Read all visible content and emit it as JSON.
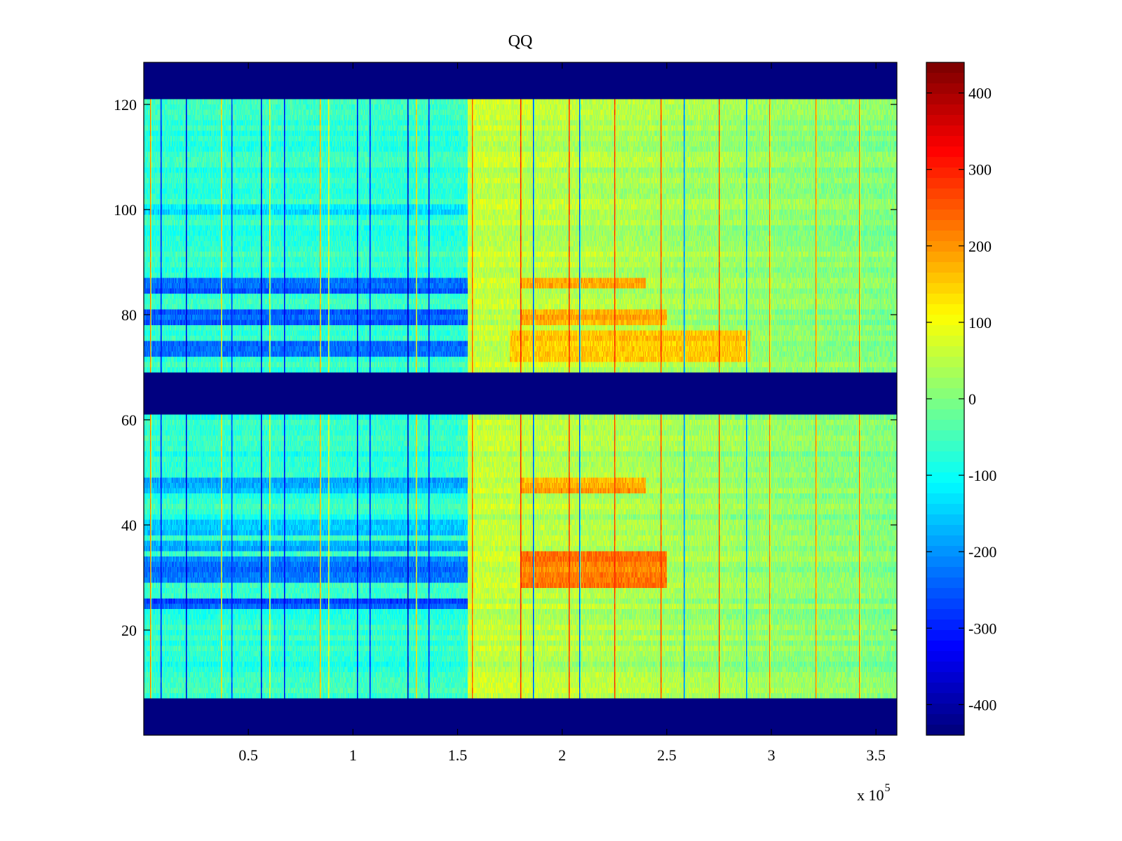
{
  "chart_data": {
    "type": "heatmap",
    "title": "QQ",
    "xlabel": "",
    "ylabel": "",
    "x_exponent_label": "x 10",
    "x_exponent_power": "5",
    "xlim": [
      0,
      3.6
    ],
    "ylim": [
      0,
      128
    ],
    "x_ticks": [
      {
        "value": 0.5,
        "label": "0.5"
      },
      {
        "value": 1,
        "label": "1"
      },
      {
        "value": 1.5,
        "label": "1.5"
      },
      {
        "value": 2,
        "label": "2"
      },
      {
        "value": 2.5,
        "label": "2.5"
      },
      {
        "value": 3,
        "label": "3"
      },
      {
        "value": 3.5,
        "label": "3.5"
      }
    ],
    "y_ticks": [
      {
        "value": 20,
        "label": "20"
      },
      {
        "value": 40,
        "label": "40"
      },
      {
        "value": 60,
        "label": "60"
      },
      {
        "value": 80,
        "label": "80"
      },
      {
        "value": 100,
        "label": "100"
      },
      {
        "value": 120,
        "label": "120"
      }
    ],
    "colorbar": {
      "colormap": "jet",
      "clim": [
        -440,
        440
      ],
      "ticks": [
        {
          "value": 400,
          "label": "400"
        },
        {
          "value": 300,
          "label": "300"
        },
        {
          "value": 200,
          "label": "200"
        },
        {
          "value": 100,
          "label": "100"
        },
        {
          "value": 0,
          "label": "0"
        },
        {
          "value": -100,
          "label": "-100"
        },
        {
          "value": -200,
          "label": "-200"
        },
        {
          "value": -300,
          "label": "-300"
        },
        {
          "value": -400,
          "label": "-400"
        }
      ]
    },
    "masked_bands_y": [
      [
        0,
        7
      ],
      [
        61.5,
        68.5
      ],
      [
        121,
        128
      ]
    ],
    "regime_change_x": 1.55,
    "left_region_level": -70,
    "right_region_level": 60,
    "cold_rows_y": [
      {
        "range": [
          24,
          26
        ],
        "value": -260
      },
      {
        "range": [
          29,
          34
        ],
        "value": -230
      },
      {
        "range": [
          35,
          37
        ],
        "value": -180
      },
      {
        "range": [
          38.5,
          41
        ],
        "value": -160
      },
      {
        "range": [
          46,
          49
        ],
        "value": -180
      },
      {
        "range": [
          72.5,
          75
        ],
        "value": -230
      },
      {
        "range": [
          78,
          80.5
        ],
        "value": -240
      },
      {
        "range": [
          84,
          87
        ],
        "value": -250
      },
      {
        "range": [
          99,
          101
        ],
        "value": -140
      }
    ],
    "warm_rows_y": [
      {
        "range": [
          28,
          35
        ],
        "value": 220,
        "x_range": [
          1.8,
          2.5
        ]
      },
      {
        "range": [
          46,
          49
        ],
        "value": 180,
        "x_range": [
          1.8,
          2.4
        ]
      },
      {
        "range": [
          71,
          77
        ],
        "value": 160,
        "x_range": [
          1.75,
          2.9
        ]
      },
      {
        "range": [
          78,
          80.5
        ],
        "value": 190,
        "x_range": [
          1.8,
          2.5
        ]
      },
      {
        "range": [
          85,
          87
        ],
        "value": 170,
        "x_range": [
          1.8,
          2.4
        ]
      }
    ],
    "vertical_streaks": [
      {
        "x": 0.03,
        "value": 230
      },
      {
        "x": 0.08,
        "value": -330
      },
      {
        "x": 0.2,
        "value": -380
      },
      {
        "x": 0.37,
        "value": 160
      },
      {
        "x": 0.42,
        "value": -300
      },
      {
        "x": 0.56,
        "value": -380
      },
      {
        "x": 0.6,
        "value": 130
      },
      {
        "x": 0.67,
        "value": -350
      },
      {
        "x": 0.84,
        "value": 200
      },
      {
        "x": 0.88,
        "value": 120
      },
      {
        "x": 1.02,
        "value": -360
      },
      {
        "x": 1.08,
        "value": -330
      },
      {
        "x": 1.26,
        "value": -400
      },
      {
        "x": 1.3,
        "value": 170
      },
      {
        "x": 1.36,
        "value": -330
      },
      {
        "x": 1.57,
        "value": 260
      },
      {
        "x": 1.8,
        "value": 330
      },
      {
        "x": 1.86,
        "value": -300
      },
      {
        "x": 2.03,
        "value": 310
      },
      {
        "x": 2.08,
        "value": -280
      },
      {
        "x": 2.25,
        "value": 300
      },
      {
        "x": 2.47,
        "value": 300
      },
      {
        "x": 2.58,
        "value": -260
      },
      {
        "x": 2.75,
        "value": 300
      },
      {
        "x": 2.88,
        "value": -240
      },
      {
        "x": 2.99,
        "value": 240
      },
      {
        "x": 3.21,
        "value": 240
      },
      {
        "x": 3.42,
        "value": 250
      }
    ]
  }
}
